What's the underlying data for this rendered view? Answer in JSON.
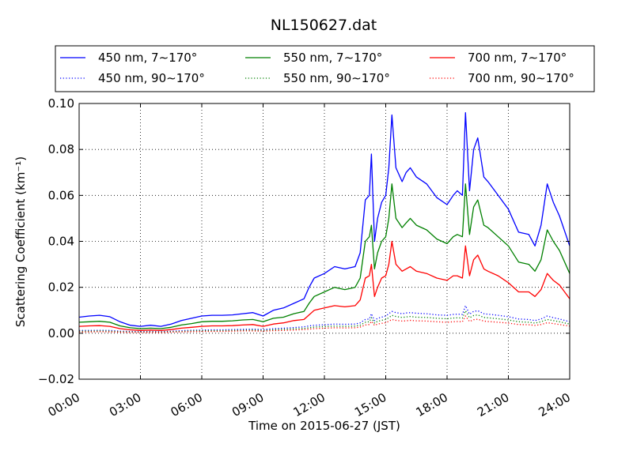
{
  "chart_data": {
    "type": "line",
    "title": "NL150627.dat",
    "xlabel": "Time on 2015-06-27 (JST)",
    "ylabel": "Scattering Coefficient (km⁻¹)",
    "xlim": [
      "00:00",
      "24:00"
    ],
    "ylim": [
      -0.02,
      0.1
    ],
    "xticks": [
      "00:00",
      "03:00",
      "06:00",
      "09:00",
      "12:00",
      "15:00",
      "18:00",
      "21:00",
      "24:00"
    ],
    "yticks": [
      "−0.02",
      "0.00",
      "0.02",
      "0.04",
      "0.06",
      "0.08",
      "0.10"
    ],
    "grid": true,
    "legend_position": "top",
    "x_hours": [
      0,
      0.5,
      1,
      1.5,
      2,
      2.5,
      3,
      3.5,
      4,
      4.5,
      5,
      5.5,
      6,
      6.5,
      7,
      7.5,
      8,
      8.5,
      9,
      9.5,
      10,
      10.5,
      11,
      11.25,
      11.5,
      12,
      12.5,
      13,
      13.5,
      13.75,
      14,
      14.2,
      14.3,
      14.45,
      14.6,
      14.8,
      15,
      15.15,
      15.3,
      15.5,
      15.8,
      16,
      16.2,
      16.5,
      17,
      17.5,
      18,
      18.3,
      18.5,
      18.75,
      18.9,
      19.1,
      19.3,
      19.5,
      19.8,
      20,
      20.5,
      21,
      21.5,
      22,
      22.3,
      22.6,
      22.9,
      23.2,
      23.5,
      24
    ],
    "series": [
      {
        "name": "450 nm, 7∼170°",
        "color": "#0000ff",
        "style": "solid",
        "values": [
          0.007,
          0.0075,
          0.0078,
          0.0072,
          0.005,
          0.0035,
          0.003,
          0.0035,
          0.003,
          0.004,
          0.0055,
          0.0065,
          0.0075,
          0.0078,
          0.0078,
          0.008,
          0.0085,
          0.009,
          0.0075,
          0.01,
          0.011,
          0.013,
          0.015,
          0.02,
          0.024,
          0.026,
          0.029,
          0.028,
          0.029,
          0.035,
          0.058,
          0.06,
          0.078,
          0.04,
          0.05,
          0.057,
          0.06,
          0.072,
          0.095,
          0.072,
          0.066,
          0.07,
          0.072,
          0.068,
          0.065,
          0.059,
          0.056,
          0.06,
          0.062,
          0.06,
          0.096,
          0.062,
          0.08,
          0.085,
          0.068,
          0.066,
          0.06,
          0.054,
          0.044,
          0.043,
          0.038,
          0.047,
          0.065,
          0.057,
          0.051,
          0.038
        ]
      },
      {
        "name": "550 nm, 7∼170°",
        "color": "#008000",
        "style": "solid",
        "values": [
          0.0048,
          0.005,
          0.0052,
          0.0048,
          0.0032,
          0.0024,
          0.002,
          0.0022,
          0.002,
          0.0026,
          0.0036,
          0.0042,
          0.005,
          0.0052,
          0.0052,
          0.0054,
          0.0058,
          0.006,
          0.005,
          0.0065,
          0.007,
          0.0085,
          0.0095,
          0.013,
          0.016,
          0.018,
          0.02,
          0.019,
          0.02,
          0.024,
          0.04,
          0.042,
          0.047,
          0.028,
          0.035,
          0.04,
          0.042,
          0.05,
          0.065,
          0.05,
          0.046,
          0.048,
          0.05,
          0.047,
          0.045,
          0.041,
          0.039,
          0.042,
          0.043,
          0.042,
          0.065,
          0.043,
          0.055,
          0.058,
          0.047,
          0.046,
          0.042,
          0.038,
          0.031,
          0.03,
          0.027,
          0.032,
          0.045,
          0.04,
          0.036,
          0.026
        ]
      },
      {
        "name": "700 nm, 7∼170°",
        "color": "#ff0000",
        "style": "solid",
        "values": [
          0.003,
          0.0032,
          0.0033,
          0.003,
          0.002,
          0.0015,
          0.0012,
          0.0014,
          0.0012,
          0.0016,
          0.0022,
          0.0026,
          0.003,
          0.0032,
          0.0032,
          0.0033,
          0.0036,
          0.0038,
          0.003,
          0.004,
          0.0045,
          0.0055,
          0.006,
          0.008,
          0.01,
          0.011,
          0.012,
          0.0115,
          0.012,
          0.0145,
          0.024,
          0.025,
          0.03,
          0.016,
          0.02,
          0.024,
          0.025,
          0.03,
          0.04,
          0.03,
          0.027,
          0.028,
          0.029,
          0.027,
          0.026,
          0.024,
          0.023,
          0.025,
          0.025,
          0.024,
          0.038,
          0.025,
          0.032,
          0.034,
          0.028,
          0.027,
          0.025,
          0.022,
          0.018,
          0.018,
          0.016,
          0.019,
          0.026,
          0.023,
          0.021,
          0.015
        ]
      },
      {
        "name": "450 nm, 90∼170°",
        "color": "#0000ff",
        "style": "dotted",
        "values": [
          0.0012,
          0.0012,
          0.0013,
          0.0012,
          0.0009,
          0.0008,
          0.0007,
          0.0008,
          0.0007,
          0.0009,
          0.0011,
          0.0013,
          0.0014,
          0.0015,
          0.0015,
          0.0016,
          0.0017,
          0.0018,
          0.0016,
          0.002,
          0.0022,
          0.0025,
          0.0028,
          0.0032,
          0.0035,
          0.0037,
          0.004,
          0.0039,
          0.004,
          0.0045,
          0.006,
          0.0062,
          0.0085,
          0.0055,
          0.0065,
          0.007,
          0.0075,
          0.0085,
          0.0095,
          0.009,
          0.0085,
          0.0088,
          0.009,
          0.0087,
          0.0085,
          0.008,
          0.0078,
          0.0082,
          0.0083,
          0.0082,
          0.012,
          0.0083,
          0.0095,
          0.0098,
          0.0085,
          0.0083,
          0.0078,
          0.0072,
          0.0062,
          0.006,
          0.0055,
          0.0062,
          0.0075,
          0.0068,
          0.0062,
          0.005
        ]
      },
      {
        "name": "550 nm, 90∼170°",
        "color": "#008000",
        "style": "dotted",
        "values": [
          0.0009,
          0.0009,
          0.001,
          0.0009,
          0.0007,
          0.0006,
          0.0005,
          0.0006,
          0.0005,
          0.0007,
          0.0008,
          0.001,
          0.0011,
          0.0011,
          0.0011,
          0.0012,
          0.0013,
          0.0014,
          0.0012,
          0.0015,
          0.0017,
          0.0019,
          0.0021,
          0.0024,
          0.0027,
          0.0029,
          0.0031,
          0.003,
          0.0031,
          0.0035,
          0.0048,
          0.005,
          0.0068,
          0.0044,
          0.0052,
          0.0056,
          0.006,
          0.0068,
          0.0078,
          0.0073,
          0.0069,
          0.0071,
          0.0073,
          0.007,
          0.0069,
          0.0065,
          0.0063,
          0.0066,
          0.0067,
          0.0066,
          0.0098,
          0.0067,
          0.0077,
          0.008,
          0.0069,
          0.0067,
          0.0063,
          0.0058,
          0.005,
          0.0048,
          0.0044,
          0.005,
          0.006,
          0.0055,
          0.005,
          0.004
        ]
      },
      {
        "name": "700 nm, 90∼170°",
        "color": "#ff0000",
        "style": "dotted",
        "values": [
          0.0006,
          0.0006,
          0.0007,
          0.0006,
          0.0005,
          0.0004,
          0.0003,
          0.0004,
          0.0003,
          0.0005,
          0.0006,
          0.0007,
          0.0008,
          0.0008,
          0.0008,
          0.0009,
          0.001,
          0.001,
          0.0009,
          0.0011,
          0.0012,
          0.0014,
          0.0016,
          0.0018,
          0.002,
          0.0022,
          0.0024,
          0.0023,
          0.0024,
          0.0027,
          0.0036,
          0.0038,
          0.0052,
          0.0034,
          0.004,
          0.0043,
          0.0046,
          0.0052,
          0.006,
          0.0056,
          0.0053,
          0.0054,
          0.0056,
          0.0054,
          0.0053,
          0.005,
          0.0048,
          0.005,
          0.0051,
          0.005,
          0.0075,
          0.0051,
          0.0059,
          0.0061,
          0.0053,
          0.0051,
          0.0048,
          0.0044,
          0.0038,
          0.0037,
          0.0034,
          0.0038,
          0.0046,
          0.0042,
          0.0038,
          0.0031
        ]
      }
    ]
  }
}
